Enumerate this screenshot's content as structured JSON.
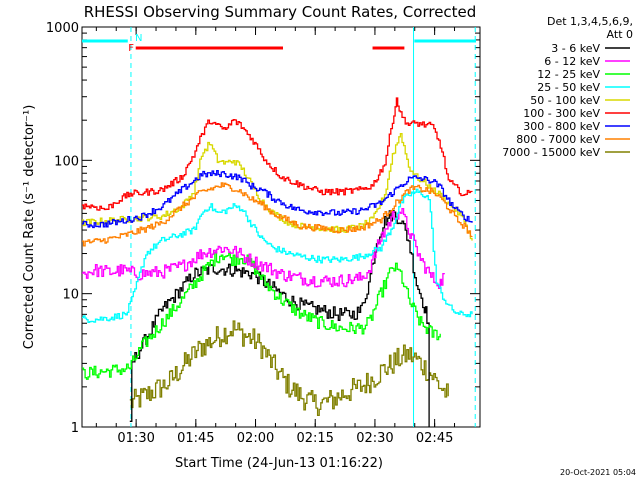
{
  "chart_data": {
    "type": "line",
    "title": "RHESSI Observing Summary Count Rates, Corrected",
    "xlabel": "Start Time (24-Jun-13 01:16:22)",
    "ylabel": "Corrected Count Rate (s⁻¹ detector⁻¹)",
    "y_scale": "log",
    "ylim": [
      1,
      1000
    ],
    "xlim_minutes": [
      0,
      100
    ],
    "x_ticks": [
      {
        "minute": 13.6,
        "label": "01:30"
      },
      {
        "minute": 28.6,
        "label": "01:45"
      },
      {
        "minute": 43.6,
        "label": "02:00"
      },
      {
        "minute": 58.6,
        "label": "02:15"
      },
      {
        "minute": 73.6,
        "label": "02:30"
      },
      {
        "minute": 88.6,
        "label": "02:45"
      }
    ],
    "y_ticks": [
      {
        "value": 1,
        "label": "1"
      },
      {
        "value": 10,
        "label": "10"
      },
      {
        "value": 100,
        "label": "100"
      },
      {
        "value": 1000,
        "label": "1000"
      }
    ],
    "legend_header": [
      "Det 1,3,4,5,6,9,",
      "Att 0"
    ],
    "legend_position": "right",
    "series": [
      {
        "name": "3 - 6 keV",
        "color": "#000000",
        "x": [
          12,
          12.5,
          20,
          25,
          28,
          33,
          38,
          43,
          46,
          48,
          52,
          56,
          60,
          64,
          68,
          70,
          72,
          74,
          76,
          78,
          80,
          82,
          84,
          86,
          87,
          87.2
        ],
        "y": [
          1,
          3,
          7.5,
          11,
          14,
          15.5,
          15,
          14,
          12,
          11,
          9,
          8,
          7.5,
          7,
          7,
          7.5,
          12,
          25,
          35,
          40,
          36,
          25,
          12,
          8,
          6,
          1
        ]
      },
      {
        "name": "6 - 12 keV",
        "color": "#ff00ff",
        "x": [
          0,
          3,
          7,
          10,
          14,
          20,
          25,
          30,
          35,
          38,
          42,
          46,
          50,
          55,
          60,
          65,
          70,
          72,
          75,
          78,
          80,
          82,
          85,
          88,
          90,
          91
        ],
        "y": [
          14,
          15,
          14.5,
          15,
          14,
          14.5,
          16,
          20,
          22,
          21,
          18,
          16,
          14,
          13,
          12.5,
          12.5,
          13,
          15,
          26,
          38,
          42,
          30,
          18,
          13,
          12,
          14
        ]
      },
      {
        "name": "12 - 25 keV",
        "color": "#00ff00",
        "x": [
          0,
          5,
          10,
          12,
          15,
          20,
          25,
          30,
          33,
          35,
          38,
          40,
          43,
          46,
          50,
          55,
          60,
          65,
          70,
          72,
          75,
          78,
          80,
          82,
          85,
          88,
          90
        ],
        "y": [
          2.5,
          2.6,
          2.7,
          2.8,
          4,
          6,
          9,
          14,
          18,
          20,
          18,
          19,
          16,
          12,
          9,
          7,
          6,
          5.5,
          5.5,
          6,
          10,
          16,
          14,
          9,
          6,
          5,
          5
        ]
      },
      {
        "name": "25 - 50 keV",
        "color": "#00ffff",
        "x": [
          0,
          3,
          7,
          11,
          12.5,
          16,
          20,
          25,
          28,
          30,
          32,
          34,
          36,
          38,
          40,
          42,
          45,
          48,
          52,
          55,
          60,
          65,
          70,
          75,
          78,
          80,
          82,
          84,
          86,
          87,
          87.5,
          89,
          91,
          93,
          95,
          98
        ],
        "y": [
          6.5,
          6.4,
          6.6,
          7,
          9,
          20,
          25,
          28,
          30,
          40,
          46,
          40,
          42,
          45,
          44,
          35,
          26,
          22,
          20,
          19,
          18,
          18,
          19,
          22,
          32,
          48,
          55,
          58,
          55,
          52,
          40,
          12,
          9,
          7.5,
          7,
          7
        ]
      },
      {
        "name": "50 - 100 keV",
        "color": "#d8d800",
        "x": [
          0,
          5,
          10,
          15,
          20,
          25,
          28,
          30,
          32,
          34,
          36,
          38,
          40,
          42,
          45,
          48,
          52,
          55,
          60,
          65,
          70,
          73,
          76,
          78,
          80,
          82,
          84,
          86,
          88,
          90,
          92,
          94,
          96,
          98
        ],
        "y": [
          34,
          35,
          36,
          37,
          38,
          45,
          58,
          110,
          135,
          100,
          95,
          100,
          88,
          70,
          50,
          40,
          34,
          32,
          31,
          30,
          32,
          36,
          55,
          110,
          160,
          90,
          75,
          68,
          60,
          55,
          48,
          42,
          35,
          25
        ]
      },
      {
        "name": "100 - 300 keV",
        "color": "#ff0000",
        "x": [
          0,
          3,
          6,
          9,
          12,
          15,
          20,
          25,
          28,
          30,
          32,
          34,
          36,
          38,
          40,
          43,
          46,
          50,
          55,
          60,
          65,
          70,
          73,
          76,
          78,
          79,
          80,
          82,
          84,
          86,
          88,
          90,
          92,
          94,
          96,
          98
        ],
        "y": [
          46,
          45,
          43,
          50,
          56,
          57,
          60,
          75,
          110,
          155,
          200,
          180,
          170,
          200,
          180,
          140,
          100,
          75,
          65,
          58,
          58,
          60,
          65,
          95,
          200,
          290,
          220,
          185,
          190,
          185,
          180,
          130,
          70,
          62,
          55,
          58
        ]
      },
      {
        "name": "300 - 800 keV",
        "color": "#0000ff",
        "x": [
          0,
          5,
          10,
          15,
          20,
          25,
          30,
          35,
          38,
          40,
          42,
          45,
          48,
          52,
          55,
          60,
          65,
          70,
          75,
          80,
          82,
          84,
          86,
          88,
          90,
          92,
          94,
          96,
          98
        ],
        "y": [
          33,
          33,
          35,
          38,
          45,
          60,
          78,
          80,
          76,
          73,
          65,
          60,
          52,
          45,
          42,
          41,
          40,
          42,
          48,
          65,
          72,
          74,
          72,
          70,
          62,
          50,
          42,
          38,
          34
        ]
      },
      {
        "name": "800 - 7000 keV",
        "color": "#ff8000",
        "x": [
          0,
          5,
          10,
          15,
          20,
          25,
          30,
          35,
          38,
          40,
          42,
          45,
          48,
          52,
          55,
          60,
          65,
          70,
          75,
          80,
          82,
          84,
          86,
          88,
          90,
          92,
          94,
          96,
          98
        ],
        "y": [
          24,
          25,
          27,
          30,
          34,
          45,
          58,
          65,
          62,
          58,
          52,
          47,
          40,
          35,
          32,
          31,
          30,
          31,
          36,
          52,
          60,
          62,
          60,
          58,
          52,
          44,
          36,
          32,
          27
        ]
      },
      {
        "name": "7000 - 15000 keV",
        "color": "#808000",
        "x": [
          12,
          14,
          17,
          20,
          22,
          25,
          28,
          30,
          33,
          35,
          38,
          40,
          43,
          45,
          47,
          49,
          52,
          55,
          58,
          60,
          63,
          66,
          70,
          73,
          75,
          78,
          80,
          82,
          84,
          86,
          88,
          90,
          92
        ],
        "y": [
          1.5,
          1.6,
          1.8,
          2,
          2.2,
          2.8,
          3.5,
          4,
          4.5,
          5,
          5.5,
          5,
          4.5,
          4,
          3.2,
          2.6,
          2,
          1.7,
          1.5,
          1.5,
          1.6,
          1.8,
          2,
          2.3,
          2.6,
          3,
          3.3,
          3.5,
          3.2,
          2.8,
          2.4,
          2,
          1.7
        ]
      }
    ],
    "annotations": [
      {
        "text": "N",
        "color": "#00ffff",
        "minute": 12.3
      },
      {
        "text": "F",
        "color": "#ff0000",
        "minute": 10.6
      }
    ],
    "state_bars": [
      {
        "name": "night",
        "color": "#00ffff",
        "row": "top",
        "from": 0,
        "to": 11.5
      },
      {
        "name": "night",
        "color": "#00ffff",
        "row": "top",
        "from": 83.5,
        "to": 99
      },
      {
        "name": "flare",
        "color": "#ff0000",
        "row": "second",
        "from": 13.5,
        "to": 50.5
      },
      {
        "name": "flare",
        "color": "#ff0000",
        "row": "second",
        "from": 73,
        "to": 81
      }
    ],
    "vlines": [
      {
        "minute": 12.3,
        "color": "#00ffff",
        "dashed": true
      },
      {
        "minute": 83.3,
        "color": "#00ffff",
        "dashed": false
      },
      {
        "minute": 98.8,
        "color": "#00ffff",
        "dashed": true
      }
    ],
    "footer": "20-Oct-2021 05:04"
  }
}
